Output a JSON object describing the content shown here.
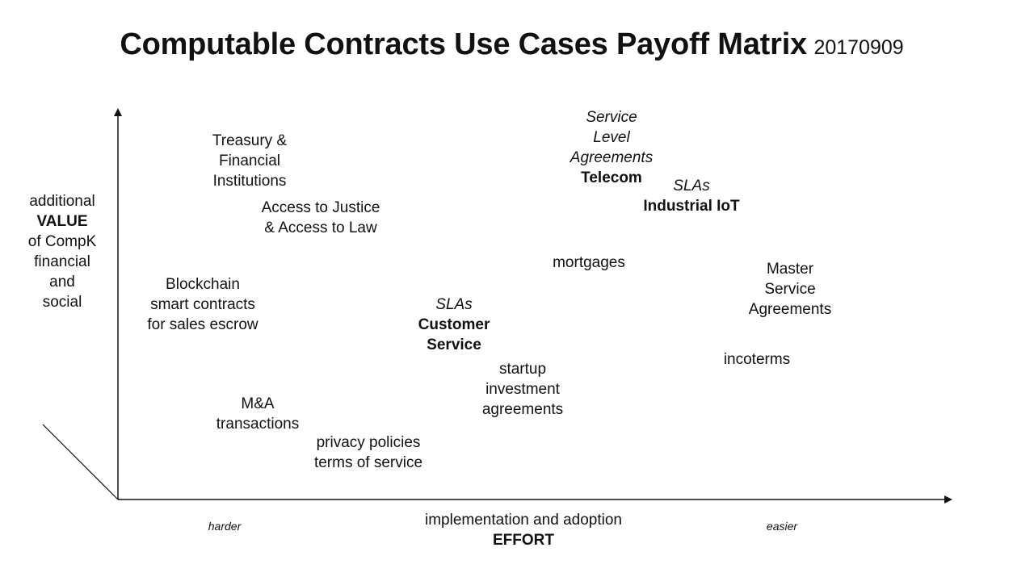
{
  "title": {
    "main": "Computable Contracts Use Cases Payoff Matrix",
    "date": "20170909"
  },
  "y_axis": {
    "line1": "additional",
    "line2": "VALUE",
    "line3": "of CompK",
    "line4": "financial",
    "line5": "and",
    "line6": "social"
  },
  "x_axis": {
    "line1": "implementation and adoption",
    "line2": "EFFORT",
    "left_end": "harder",
    "right_end": "easier"
  },
  "items": {
    "treasury": [
      "Treasury &",
      "Financial",
      "Institutions"
    ],
    "justice": [
      "Access to Justice",
      "& Access to Law"
    ],
    "blockchain": [
      "Blockchain",
      "smart contracts",
      "for sales escrow"
    ],
    "ma": [
      "M&A",
      "transactions"
    ],
    "privacy": [
      "privacy policies",
      "terms of service"
    ],
    "sla_customer": [
      "SLAs",
      "Customer",
      "Service"
    ],
    "startup": [
      "startup",
      "investment",
      "agreements"
    ],
    "mortgages": [
      "mortgages"
    ],
    "sla_telecom": [
      "Service",
      "Level",
      "Agreements",
      "Telecom"
    ],
    "sla_iot": [
      "SLAs",
      "Industrial IoT"
    ],
    "msa": [
      "Master",
      "Service",
      "Agreements"
    ],
    "incoterms": [
      "incoterms"
    ]
  }
}
